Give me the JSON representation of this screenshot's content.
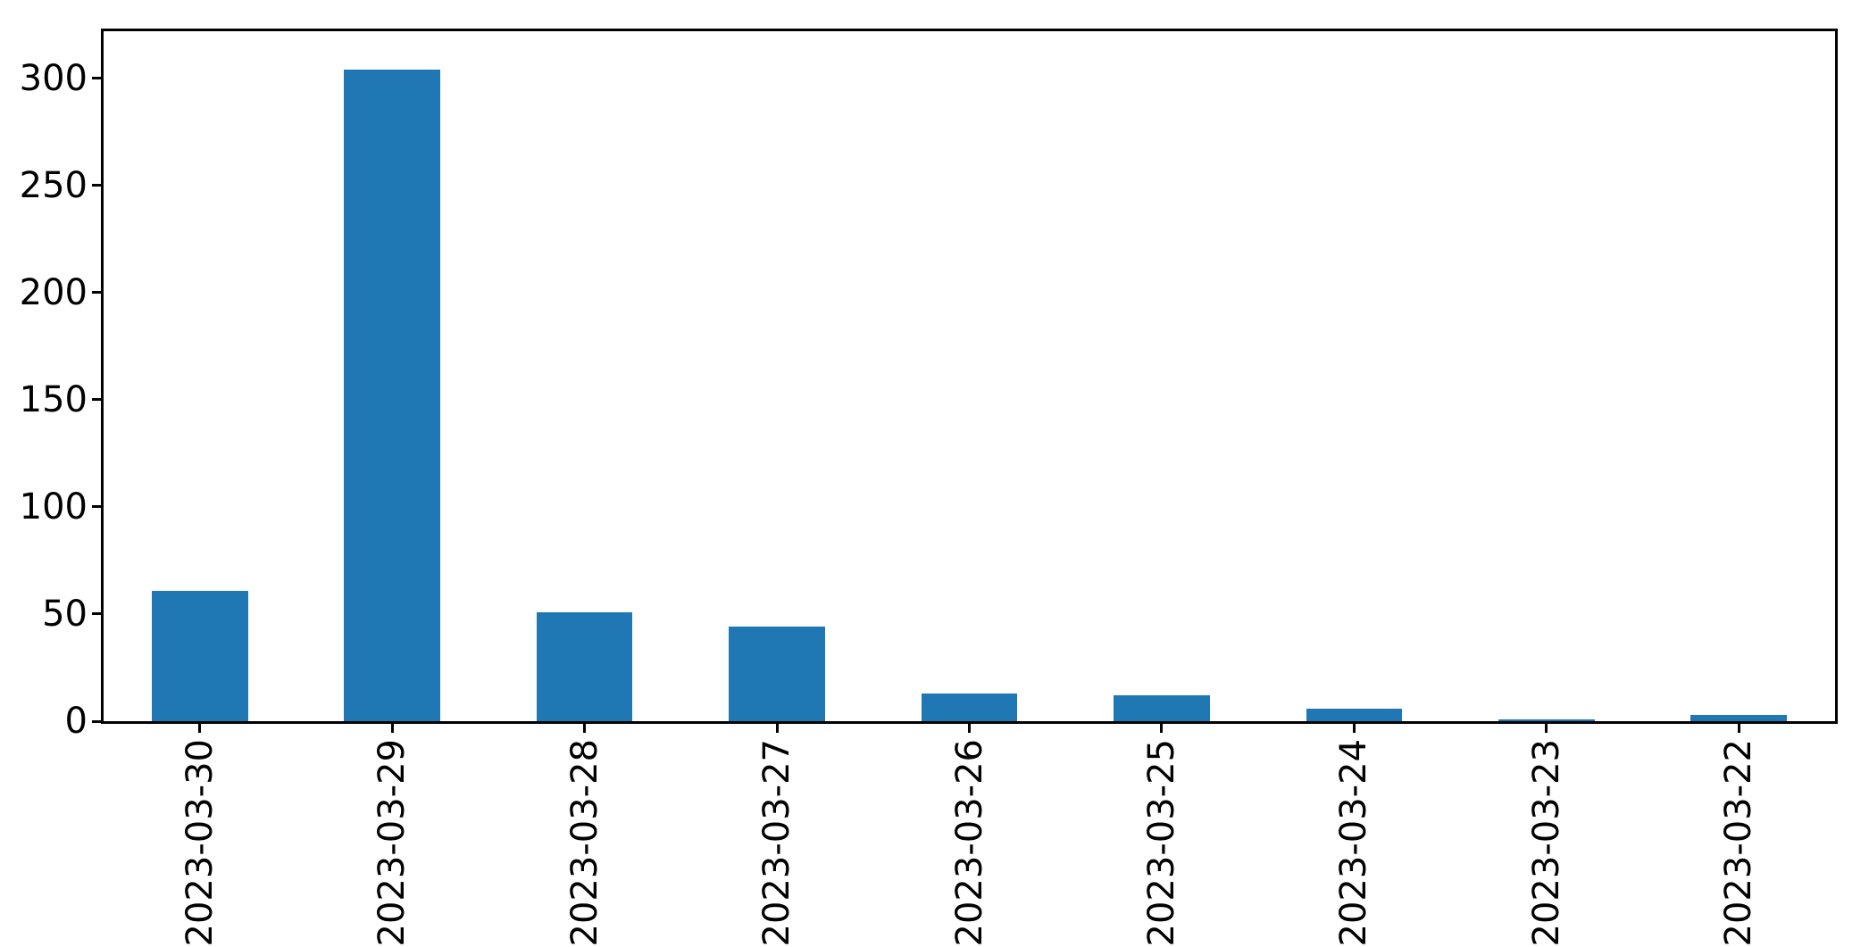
{
  "figure": {
    "background": "#ffffff",
    "axis_color": "#000000"
  },
  "chart_data": {
    "type": "bar",
    "title": "",
    "xlabel": "",
    "ylabel": "",
    "categories": [
      "2023-03-30",
      "2023-03-29",
      "2023-03-28",
      "2023-03-27",
      "2023-03-26",
      "2023-03-25",
      "2023-03-24",
      "2023-03-23",
      "2023-03-22"
    ],
    "values": [
      61,
      304,
      51,
      44,
      13,
      12,
      6,
      1,
      3
    ],
    "yticks": [
      0,
      50,
      100,
      150,
      200,
      250,
      300
    ],
    "ylim": [
      0,
      322
    ],
    "bar_color": "#1f77b4",
    "bar_width_fraction": 0.5,
    "grid": false,
    "legend": null,
    "x_tick_label_rotation_deg": 90
  }
}
